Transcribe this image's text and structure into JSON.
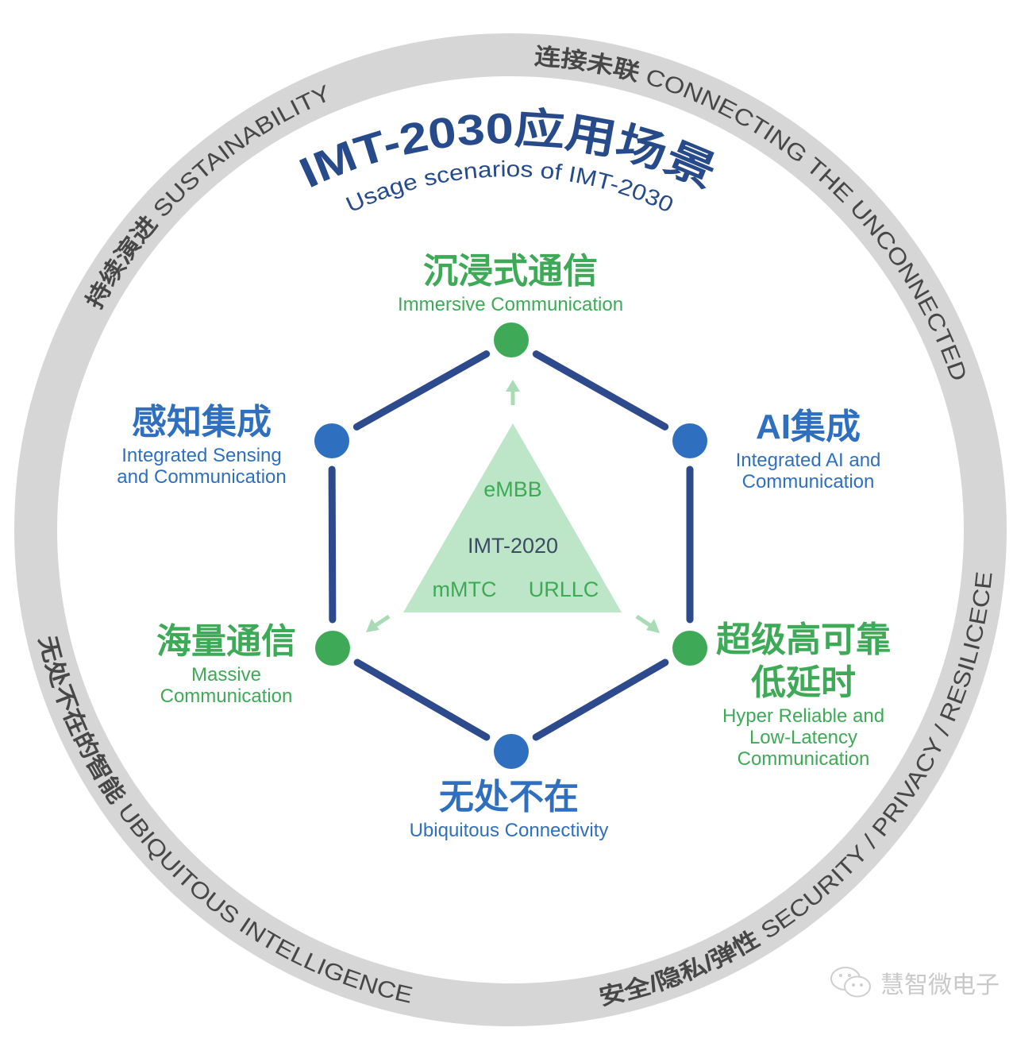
{
  "title": {
    "zh": "IMT-2030应用场景",
    "en": "Usage scenarios of IMT-2030"
  },
  "ring": {
    "sustainability": {
      "zh": "持续演进",
      "en": "SUSTAINABILITY"
    },
    "connecting": {
      "zh": "连接未联",
      "en": "CONNECTING THE UNCONNECTED"
    },
    "intelligence": {
      "zh": "无处不在的智能",
      "en": "UBIQUITOUS INTELLIGENCE"
    },
    "security": {
      "zh": "安全/隐私/弹性",
      "en": "SECURITY / PRIVACY / RESILICECE"
    }
  },
  "scenarios": {
    "immersive": {
      "zh": "沉浸式通信",
      "en": [
        "Immersive Communication"
      ],
      "color": "#3eaa57"
    },
    "sensing": {
      "zh": "感知集成",
      "en": [
        "Integrated Sensing",
        "and Communication"
      ],
      "color": "#2f6fbf"
    },
    "ai": {
      "zh": "AI集成",
      "en": [
        "Integrated AI and",
        "Communication"
      ],
      "color": "#2f6fbf"
    },
    "massive": {
      "zh": "海量通信",
      "en": [
        "Massive",
        "Communication"
      ],
      "color": "#3eaa57"
    },
    "hrllc": {
      "zh": [
        "超级高可靠",
        "低延时"
      ],
      "en": [
        "Hyper Reliable and",
        "Low-Latency",
        "Communication"
      ],
      "color": "#3eaa57"
    },
    "ubiquitous": {
      "zh": "无处不在",
      "en": [
        "Ubiquitous Connectivity"
      ],
      "color": "#2f6fbf"
    }
  },
  "triangle": {
    "top": "eMBB",
    "center": "IMT-2020",
    "left": "mMTC",
    "right": "URLLC"
  },
  "watermark": {
    "text": "慧智微电子",
    "icon": "wechat-icon"
  },
  "colors": {
    "ring": "#d6d6d6",
    "hexagon_edge": "#2c4a8c",
    "title": "#264a8a",
    "triangle": "#bde5c8",
    "green": "#3eaa57",
    "blue": "#2f6fbf"
  }
}
